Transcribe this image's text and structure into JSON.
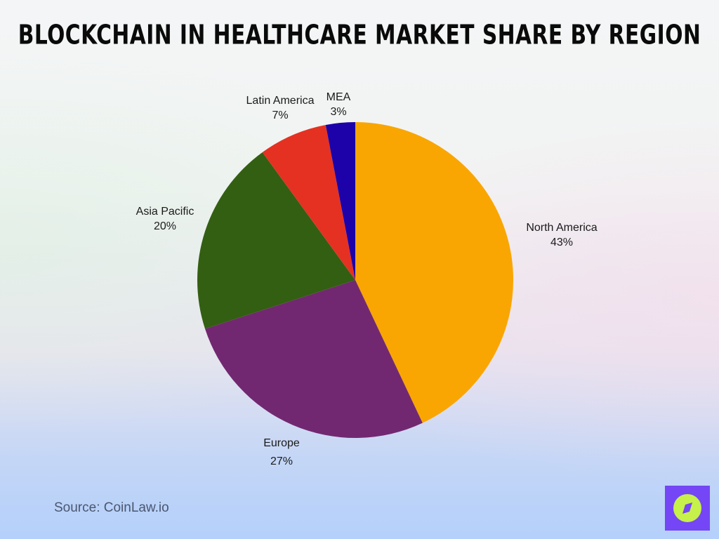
{
  "title": "Blockchain in Healthcare Market Share by Region",
  "source": "Source: CoinLaw.io",
  "logo": {
    "icon": "compass-icon",
    "bg": "#7446f5",
    "fg": "#c6f04a"
  },
  "labels": {
    "north_america": {
      "name": "North America",
      "value": "43%"
    },
    "europe": {
      "name": "Europe",
      "value": "27%"
    },
    "asia_pacific": {
      "name": "Asia Pacific",
      "value": "20%"
    },
    "latin_america": {
      "name": "Latin America",
      "value": "7%"
    },
    "mea": {
      "name": "MEA",
      "value": "3%"
    }
  },
  "chart_data": {
    "type": "pie",
    "title": "Blockchain in Healthcare Market Share by Region",
    "categories": [
      "North America",
      "Europe",
      "Asia Pacific",
      "Latin America",
      "MEA"
    ],
    "values": [
      43,
      27,
      20,
      7,
      3
    ],
    "unit": "%",
    "colors": [
      "#f9a602",
      "#722870",
      "#335f12",
      "#e53121",
      "#1c02a8"
    ],
    "start_angle": "12 o'clock, clockwise",
    "legend": "none (direct labels)",
    "source": "CoinLaw.io"
  }
}
